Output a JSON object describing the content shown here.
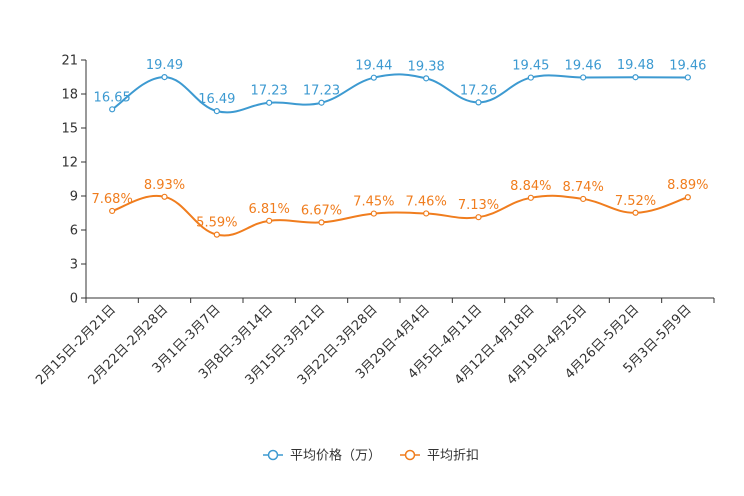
{
  "chart_data": {
    "type": "line",
    "title": "",
    "xlabel": "",
    "ylabel": "",
    "ylim": [
      0,
      21
    ],
    "yticks": [
      0,
      3,
      6,
      9,
      12,
      15,
      18,
      21
    ],
    "grid": false,
    "legend_position": "bottom-center",
    "categories": [
      "2月15日-2月21日",
      "2月22日-2月28日",
      "3月1日-3月7日",
      "3月8日-3月14日",
      "3月15日-3月21日",
      "3月22日-3月28日",
      "3月29日-4月4日",
      "4月5日-4月11日",
      "4月12日-4月18日",
      "4月19日-4月25日",
      "4月26日-5月2日",
      "5月3日-5月9日"
    ],
    "series": [
      {
        "name": "平均价格（万）",
        "color": "#3d9ad1",
        "values": [
          16.65,
          19.49,
          16.49,
          17.23,
          17.23,
          19.44,
          19.38,
          17.26,
          19.45,
          19.46,
          19.48,
          19.46
        ],
        "labels": [
          "16.65",
          "19.49",
          "16.49",
          "17.23",
          "17.23",
          "19.44",
          "19.38",
          "17.26",
          "19.45",
          "19.46",
          "19.48",
          "19.46"
        ]
      },
      {
        "name": "平均折扣",
        "color": "#f07d1e",
        "values": [
          7.68,
          8.93,
          5.59,
          6.81,
          6.67,
          7.45,
          7.46,
          7.13,
          8.84,
          8.74,
          7.52,
          8.89
        ],
        "labels": [
          "7.68%",
          "8.93%",
          "5.59%",
          "6.81%",
          "6.67%",
          "7.45%",
          "7.46%",
          "7.13%",
          "8.84%",
          "8.74%",
          "7.52%",
          "8.89%"
        ]
      }
    ]
  }
}
